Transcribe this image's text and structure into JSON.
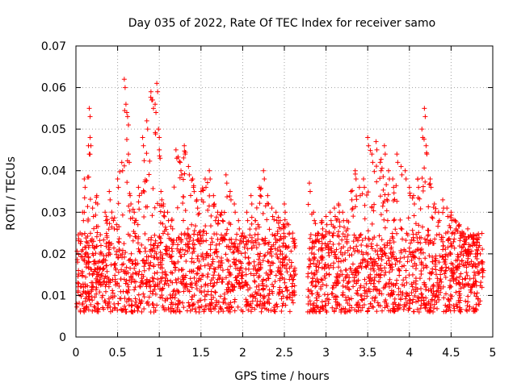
{
  "chart_data": {
    "type": "scatter",
    "title": "Day 035 of 2022, Rate Of TEC Index for receiver samo",
    "xlabel": "GPS time / hours",
    "ylabel": "ROTI / TECUs",
    "xlim": [
      0,
      5
    ],
    "ylim": [
      0,
      0.07
    ],
    "xticks": [
      0,
      0.5,
      1,
      1.5,
      2,
      2.5,
      3,
      3.5,
      4,
      4.5,
      5
    ],
    "xtick_labels": [
      "0",
      "0.5",
      "1",
      "1.5",
      "2",
      "2.5",
      "3",
      "3.5",
      "4",
      "4.5",
      "5"
    ],
    "yticks": [
      0,
      0.01,
      0.02,
      0.03,
      0.04,
      0.05,
      0.06,
      0.07
    ],
    "ytick_labels": [
      "0",
      "0.01",
      "0.02",
      "0.03",
      "0.04",
      "0.05",
      "0.06",
      "0.07"
    ],
    "grid": true,
    "marker": "+",
    "color": "#ff0000",
    "series": [
      {
        "name": "ROTI",
        "data_gap_hours": [
          2.64,
          2.78
        ],
        "x": [
          0.02,
          0.05,
          0.08,
          0.1,
          0.12,
          0.15,
          0.16,
          0.17,
          0.2,
          0.25,
          0.3,
          0.35,
          0.4,
          0.45,
          0.5,
          0.55,
          0.58,
          0.6,
          0.62,
          0.63,
          0.65,
          0.7,
          0.75,
          0.8,
          0.85,
          0.9,
          0.92,
          0.95,
          0.97,
          0.99,
          1.0,
          1.02,
          1.05,
          1.1,
          1.15,
          1.2,
          1.25,
          1.3,
          1.35,
          1.4,
          1.45,
          1.5,
          1.55,
          1.6,
          1.65,
          1.7,
          1.75,
          1.8,
          1.85,
          1.9,
          1.95,
          2.0,
          2.05,
          2.1,
          2.15,
          2.2,
          2.25,
          2.3,
          2.35,
          2.4,
          2.45,
          2.5,
          2.55,
          2.6,
          2.8,
          2.85,
          2.9,
          2.95,
          3.0,
          3.05,
          3.1,
          3.15,
          3.2,
          3.25,
          3.3,
          3.35,
          3.4,
          3.45,
          3.5,
          3.55,
          3.6,
          3.65,
          3.7,
          3.75,
          3.8,
          3.85,
          3.9,
          3.95,
          4.0,
          4.05,
          4.1,
          4.15,
          4.18,
          4.2,
          4.25,
          4.3,
          4.35,
          4.4,
          4.45,
          4.5,
          4.55,
          4.6,
          4.65,
          4.7,
          4.75,
          4.8,
          4.85,
          4.88
        ],
        "y": [
          0.018,
          0.025,
          0.03,
          0.038,
          0.02,
          0.046,
          0.055,
          0.048,
          0.031,
          0.034,
          0.022,
          0.03,
          0.035,
          0.028,
          0.038,
          0.042,
          0.062,
          0.056,
          0.053,
          0.044,
          0.034,
          0.03,
          0.036,
          0.048,
          0.052,
          0.059,
          0.057,
          0.056,
          0.061,
          0.05,
          0.045,
          0.035,
          0.032,
          0.03,
          0.028,
          0.045,
          0.042,
          0.046,
          0.041,
          0.038,
          0.033,
          0.035,
          0.038,
          0.04,
          0.034,
          0.03,
          0.03,
          0.039,
          0.035,
          0.032,
          0.028,
          0.025,
          0.03,
          0.034,
          0.028,
          0.036,
          0.04,
          0.034,
          0.031,
          0.03,
          0.028,
          0.032,
          0.027,
          0.025,
          0.037,
          0.03,
          0.025,
          0.028,
          0.029,
          0.03,
          0.031,
          0.032,
          0.03,
          0.028,
          0.035,
          0.04,
          0.036,
          0.038,
          0.048,
          0.044,
          0.047,
          0.042,
          0.046,
          0.04,
          0.038,
          0.044,
          0.041,
          0.04,
          0.036,
          0.034,
          0.038,
          0.05,
          0.055,
          0.046,
          0.038,
          0.032,
          0.03,
          0.033,
          0.031,
          0.03,
          0.028,
          0.027,
          0.025,
          0.026,
          0.024,
          0.022,
          0.02,
          0.018
        ]
      }
    ],
    "note": "x/y above are representative upper-envelope points read from the plot; the dense lower band (~0.005-0.025 TECU) is generated from them in the drawing script"
  }
}
